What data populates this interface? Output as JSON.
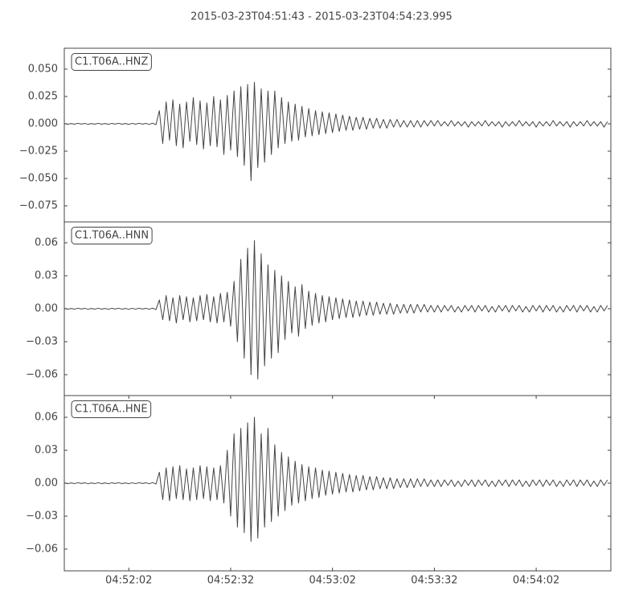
{
  "title": "2015-03-23T04:51:43  -  2015-03-23T04:54:23.995",
  "chart_data": [
    {
      "type": "line",
      "label": "C1.T06A..HNZ",
      "color": "#444444",
      "x": [
        0,
        1,
        2,
        3,
        4,
        5,
        6,
        7,
        8,
        9,
        10,
        11,
        12,
        13,
        14,
        15,
        16,
        17,
        18,
        19,
        20,
        21,
        22,
        23,
        24,
        25,
        26,
        27,
        28,
        29,
        30,
        31,
        32,
        33,
        34,
        35,
        36,
        37,
        38,
        39,
        40,
        41,
        42,
        43,
        44,
        45,
        46,
        47,
        48,
        49,
        50,
        51,
        52,
        53,
        54,
        55,
        56,
        57,
        58,
        59,
        60,
        61,
        62,
        63,
        64,
        65,
        66,
        67,
        68,
        69,
        70,
        71,
        72,
        73,
        74,
        75,
        76,
        77,
        78,
        79,
        80,
        81,
        82,
        83,
        84,
        85,
        86,
        87,
        88,
        89,
        90,
        91,
        92,
        93,
        94,
        95,
        96,
        97,
        98,
        99,
        100,
        101,
        102,
        103,
        104,
        105,
        106,
        107,
        108,
        109,
        110,
        111,
        112,
        113,
        114,
        115,
        116,
        117,
        118,
        119,
        120,
        121,
        122,
        123,
        124,
        125,
        126,
        127,
        128,
        129,
        130,
        131,
        132,
        133,
        134,
        135,
        136,
        137,
        138,
        139,
        140,
        141,
        142,
        143,
        144,
        145,
        146,
        147,
        148,
        149,
        150,
        151,
        152,
        153,
        154,
        155,
        156,
        157,
        158,
        159,
        160
      ],
      "values": [
        0.0004,
        -0.0005,
        0.0003,
        -0.0004,
        0.0005,
        -0.0003,
        0.0004,
        -0.0005,
        0.0003,
        -0.0004,
        0.0005,
        -0.0004,
        0.0003,
        -0.0005,
        0.0004,
        -0.0003,
        0.0005,
        -0.0004,
        0.0003,
        -0.0005,
        0.0004,
        -0.0004,
        0.0005,
        -0.0003,
        0.0004,
        -0.0005,
        0.0006,
        -0.0008,
        0.012,
        -0.018,
        0.02,
        -0.015,
        0.022,
        -0.02,
        0.018,
        -0.022,
        0.02,
        -0.016,
        0.024,
        -0.019,
        0.021,
        -0.023,
        0.019,
        -0.02,
        0.025,
        -0.021,
        0.022,
        -0.028,
        0.026,
        -0.024,
        0.03,
        -0.03,
        0.034,
        -0.038,
        0.036,
        -0.052,
        0.038,
        -0.04,
        0.032,
        -0.035,
        0.03,
        -0.028,
        0.03,
        -0.022,
        0.024,
        -0.018,
        0.02,
        -0.016,
        0.018,
        -0.015,
        0.016,
        -0.012,
        0.014,
        -0.011,
        0.012,
        -0.01,
        0.011,
        -0.009,
        0.01,
        -0.008,
        0.009,
        -0.007,
        0.008,
        -0.006,
        0.007,
        -0.006,
        0.006,
        -0.005,
        0.006,
        -0.005,
        0.005,
        -0.004,
        0.005,
        -0.004,
        0.004,
        -0.004,
        0.004,
        -0.003,
        0.004,
        -0.003,
        0.003,
        -0.003,
        0.003,
        -0.003,
        0.003,
        -0.003,
        0.003,
        -0.002,
        0.003,
        -0.002,
        0.003,
        -0.002,
        0.002,
        -0.002,
        0.003,
        -0.002,
        0.002,
        -0.002,
        0.002,
        -0.003,
        0.002,
        -0.002,
        0.002,
        -0.002,
        0.003,
        -0.002,
        0.002,
        -0.002,
        0.002,
        -0.003,
        0.002,
        -0.002,
        0.002,
        -0.002,
        0.003,
        -0.002,
        0.002,
        -0.002,
        0.002,
        -0.003,
        0.002,
        -0.002,
        0.002,
        -0.002,
        0.003,
        -0.002,
        0.002,
        -0.002,
        0.002,
        -0.003,
        0.002,
        -0.002,
        0.002,
        -0.002,
        0.003,
        -0.002,
        0.002,
        -0.002,
        0.002,
        -0.003,
        0.002
      ],
      "xlim": [
        0,
        160.995
      ],
      "ylim": [
        -0.0897,
        0.0691
      ],
      "yticks": [
        {
          "value": -0.075,
          "label": "−0.075"
        },
        {
          "value": -0.05,
          "label": "−0.050"
        },
        {
          "value": -0.025,
          "label": "−0.025"
        },
        {
          "value": 0,
          "label": "0.000"
        },
        0.025,
        {
          "value": 0.05,
          "label": "0.050"
        }
      ]
    },
    {
      "type": "line",
      "label": "C1.T06A..HNN",
      "color": "#444444",
      "x": [
        0,
        1,
        2,
        3,
        4,
        5,
        6,
        7,
        8,
        9,
        10,
        11,
        12,
        13,
        14,
        15,
        16,
        17,
        18,
        19,
        20,
        21,
        22,
        23,
        24,
        25,
        26,
        27,
        28,
        29,
        30,
        31,
        32,
        33,
        34,
        35,
        36,
        37,
        38,
        39,
        40,
        41,
        42,
        43,
        44,
        45,
        46,
        47,
        48,
        49,
        50,
        51,
        52,
        53,
        54,
        55,
        56,
        57,
        58,
        59,
        60,
        61,
        62,
        63,
        64,
        65,
        66,
        67,
        68,
        69,
        70,
        71,
        72,
        73,
        74,
        75,
        76,
        77,
        78,
        79,
        80,
        81,
        82,
        83,
        84,
        85,
        86,
        87,
        88,
        89,
        90,
        91,
        92,
        93,
        94,
        95,
        96,
        97,
        98,
        99,
        100,
        101,
        102,
        103,
        104,
        105,
        106,
        107,
        108,
        109,
        110,
        111,
        112,
        113,
        114,
        115,
        116,
        117,
        118,
        119,
        120,
        121,
        122,
        123,
        124,
        125,
        126,
        127,
        128,
        129,
        130,
        131,
        132,
        133,
        134,
        135,
        136,
        137,
        138,
        139,
        140,
        141,
        142,
        143,
        144,
        145,
        146,
        147,
        148,
        149,
        150,
        151,
        152,
        153,
        154,
        155,
        156,
        157,
        158,
        159,
        160
      ],
      "values": [
        0.0004,
        -0.0005,
        0.0003,
        -0.0004,
        0.0005,
        -0.0003,
        0.0004,
        -0.0005,
        0.0003,
        -0.0004,
        0.0005,
        -0.0004,
        0.0003,
        -0.0005,
        0.0004,
        -0.0003,
        0.0005,
        -0.0004,
        0.0003,
        -0.0005,
        0.0004,
        -0.0004,
        0.0005,
        -0.0003,
        0.0004,
        -0.0005,
        0.0006,
        -0.0008,
        0.008,
        -0.01,
        0.012,
        -0.011,
        0.01,
        -0.013,
        0.012,
        -0.01,
        0.011,
        -0.012,
        0.01,
        -0.011,
        0.012,
        -0.01,
        0.013,
        -0.012,
        0.011,
        -0.013,
        0.014,
        -0.012,
        0.015,
        -0.016,
        0.025,
        -0.03,
        0.045,
        -0.045,
        0.055,
        -0.06,
        0.062,
        -0.064,
        0.05,
        -0.052,
        0.04,
        -0.045,
        0.035,
        -0.04,
        0.03,
        -0.028,
        0.025,
        -0.022,
        0.02,
        -0.025,
        0.022,
        -0.018,
        0.016,
        -0.015,
        0.014,
        -0.013,
        0.012,
        -0.012,
        0.011,
        -0.01,
        0.01,
        -0.009,
        0.009,
        -0.008,
        0.008,
        -0.008,
        0.007,
        -0.007,
        0.007,
        -0.006,
        0.006,
        -0.006,
        0.006,
        -0.005,
        0.005,
        -0.005,
        0.005,
        -0.005,
        0.004,
        -0.004,
        0.004,
        -0.004,
        0.004,
        -0.004,
        0.004,
        -0.003,
        0.004,
        -0.003,
        0.003,
        -0.003,
        0.003,
        -0.003,
        0.003,
        -0.002,
        0.003,
        -0.003,
        0.002,
        -0.003,
        0.003,
        -0.002,
        0.003,
        -0.003,
        0.003,
        -0.002,
        0.003,
        -0.003,
        0.002,
        -0.003,
        0.003,
        -0.002,
        0.003,
        -0.003,
        0.003,
        -0.002,
        0.003,
        -0.003,
        0.002,
        -0.003,
        0.003,
        -0.002,
        0.003,
        -0.003,
        0.003,
        -0.002,
        0.003,
        -0.003,
        0.002,
        -0.003,
        0.003,
        -0.002,
        0.003,
        -0.003,
        0.003,
        -0.002,
        0.003,
        -0.003,
        0.002,
        -0.003,
        0.003,
        -0.002,
        0.003
      ],
      "xlim": [
        0,
        160.995
      ],
      "ylim": [
        -0.079,
        0.079
      ],
      "yticks": [
        {
          "value": -0.06,
          "label": "−0.06"
        },
        {
          "value": -0.03,
          "label": "−0.03"
        },
        {
          "value": 0,
          "label": "0.00"
        },
        0.03,
        0.06
      ]
    },
    {
      "type": "line",
      "label": "C1.T06A..HNE",
      "color": "#444444",
      "x": [
        0,
        1,
        2,
        3,
        4,
        5,
        6,
        7,
        8,
        9,
        10,
        11,
        12,
        13,
        14,
        15,
        16,
        17,
        18,
        19,
        20,
        21,
        22,
        23,
        24,
        25,
        26,
        27,
        28,
        29,
        30,
        31,
        32,
        33,
        34,
        35,
        36,
        37,
        38,
        39,
        40,
        41,
        42,
        43,
        44,
        45,
        46,
        47,
        48,
        49,
        50,
        51,
        52,
        53,
        54,
        55,
        56,
        57,
        58,
        59,
        60,
        61,
        62,
        63,
        64,
        65,
        66,
        67,
        68,
        69,
        70,
        71,
        72,
        73,
        74,
        75,
        76,
        77,
        78,
        79,
        80,
        81,
        82,
        83,
        84,
        85,
        86,
        87,
        88,
        89,
        90,
        91,
        92,
        93,
        94,
        95,
        96,
        97,
        98,
        99,
        100,
        101,
        102,
        103,
        104,
        105,
        106,
        107,
        108,
        109,
        110,
        111,
        112,
        113,
        114,
        115,
        116,
        117,
        118,
        119,
        120,
        121,
        122,
        123,
        124,
        125,
        126,
        127,
        128,
        129,
        130,
        131,
        132,
        133,
        134,
        135,
        136,
        137,
        138,
        139,
        140,
        141,
        142,
        143,
        144,
        145,
        146,
        147,
        148,
        149,
        150,
        151,
        152,
        153,
        154,
        155,
        156,
        157,
        158,
        159,
        160
      ],
      "values": [
        0.0004,
        -0.0005,
        0.0003,
        -0.0004,
        0.0005,
        -0.0003,
        0.0004,
        -0.0005,
        0.0003,
        -0.0004,
        0.0005,
        -0.0004,
        0.0003,
        -0.0005,
        0.0004,
        -0.0003,
        0.0005,
        -0.0004,
        0.0003,
        -0.0005,
        0.0004,
        -0.0004,
        0.0005,
        -0.0003,
        0.0004,
        -0.0005,
        0.0006,
        -0.0008,
        0.01,
        -0.015,
        0.014,
        -0.016,
        0.015,
        -0.014,
        0.016,
        -0.015,
        0.013,
        -0.016,
        0.014,
        -0.015,
        0.016,
        -0.014,
        0.015,
        -0.016,
        0.014,
        -0.015,
        0.016,
        -0.018,
        0.03,
        -0.03,
        0.045,
        -0.04,
        0.05,
        -0.045,
        0.055,
        -0.053,
        0.06,
        -0.05,
        0.045,
        -0.04,
        0.05,
        -0.035,
        0.035,
        -0.03,
        0.028,
        -0.025,
        0.024,
        -0.02,
        0.02,
        -0.018,
        0.017,
        -0.016,
        0.015,
        -0.014,
        0.014,
        -0.013,
        0.012,
        -0.011,
        0.011,
        -0.01,
        0.01,
        -0.009,
        0.009,
        -0.008,
        0.008,
        -0.008,
        0.007,
        -0.007,
        0.007,
        -0.006,
        0.006,
        -0.006,
        0.006,
        -0.005,
        0.005,
        -0.005,
        0.005,
        -0.005,
        0.004,
        -0.004,
        0.004,
        -0.004,
        0.004,
        -0.004,
        0.004,
        -0.003,
        0.004,
        -0.003,
        0.003,
        -0.003,
        0.003,
        -0.003,
        0.003,
        -0.002,
        0.003,
        -0.003,
        0.002,
        -0.003,
        0.003,
        -0.002,
        0.003,
        -0.003,
        0.003,
        -0.002,
        0.003,
        -0.003,
        0.002,
        -0.003,
        0.003,
        -0.002,
        0.003,
        -0.003,
        0.003,
        -0.002,
        0.003,
        -0.003,
        0.002,
        -0.003,
        0.003,
        -0.002,
        0.003,
        -0.003,
        0.003,
        -0.002,
        0.003,
        -0.003,
        0.002,
        -0.003,
        0.003,
        -0.002,
        0.003,
        -0.003,
        0.003,
        -0.002,
        0.003,
        -0.003,
        0.002,
        -0.003,
        0.003,
        -0.002,
        0.003
      ],
      "xlim": [
        0,
        160.995
      ],
      "ylim": [
        -0.0798,
        0.0798
      ],
      "yticks": [
        {
          "value": -0.06,
          "label": "−0.06"
        },
        {
          "value": -0.03,
          "label": "−0.03"
        },
        {
          "value": 0,
          "label": "0.00"
        },
        0.03,
        0.06
      ],
      "xticks": [
        {
          "value": 19,
          "label": "04:52:02"
        },
        {
          "value": 49,
          "label": "04:52:32"
        },
        {
          "value": 79,
          "label": "04:53:02"
        },
        {
          "value": 109,
          "label": "04:53:32"
        },
        {
          "value": 139,
          "label": "04:54:02"
        }
      ]
    }
  ]
}
